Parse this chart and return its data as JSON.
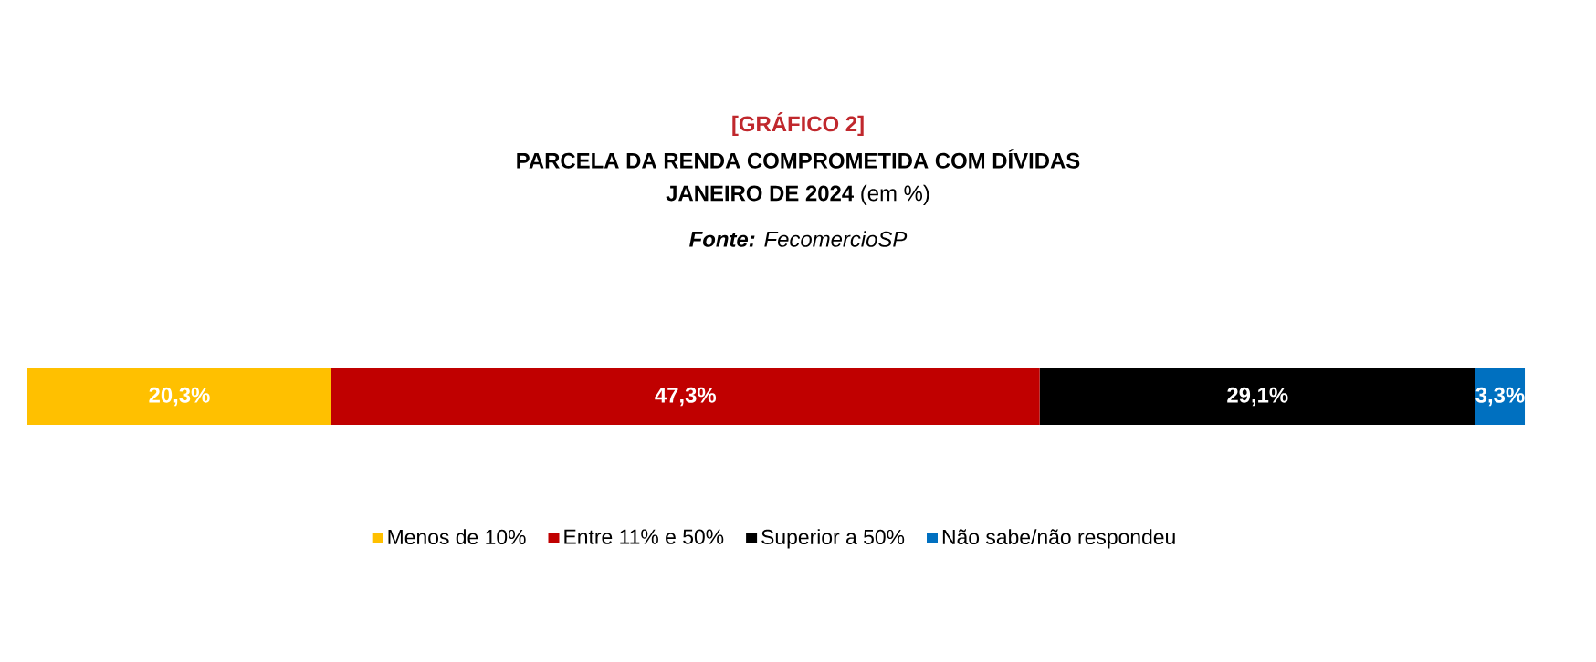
{
  "chart_data": {
    "type": "bar",
    "orientation": "horizontal",
    "stacked": true,
    "title": "PARCELA DA RENDA COMPROMETIDA COM DÍVIDAS",
    "annotations": [
      "[GRÁFICO 2]",
      "**JANEIRO DE 2024** (em %)",
      "**Fonte:** FecomercioSP"
    ],
    "categories": [
      null
    ],
    "legend": "bottom",
    "series": [
      {
        "name": "Menos de 10%",
        "color": "#ffc000",
        "values": [
          20.3
        ],
        "value_labels": [
          "20,3%"
        ]
      },
      {
        "name": "Entre 11% e 50%",
        "color": "#c00000",
        "values": [
          47.3
        ],
        "value_labels": [
          "47,3%"
        ]
      },
      {
        "name": "Superior a 50%",
        "color": "#000000",
        "values": [
          29.1
        ],
        "value_labels": [
          "29,1%"
        ]
      },
      {
        "name": "Não sabe/não respondeu",
        "color": "#0070c0",
        "values": [
          3.3
        ],
        "value_labels": [
          "3,3%"
        ]
      }
    ]
  }
}
